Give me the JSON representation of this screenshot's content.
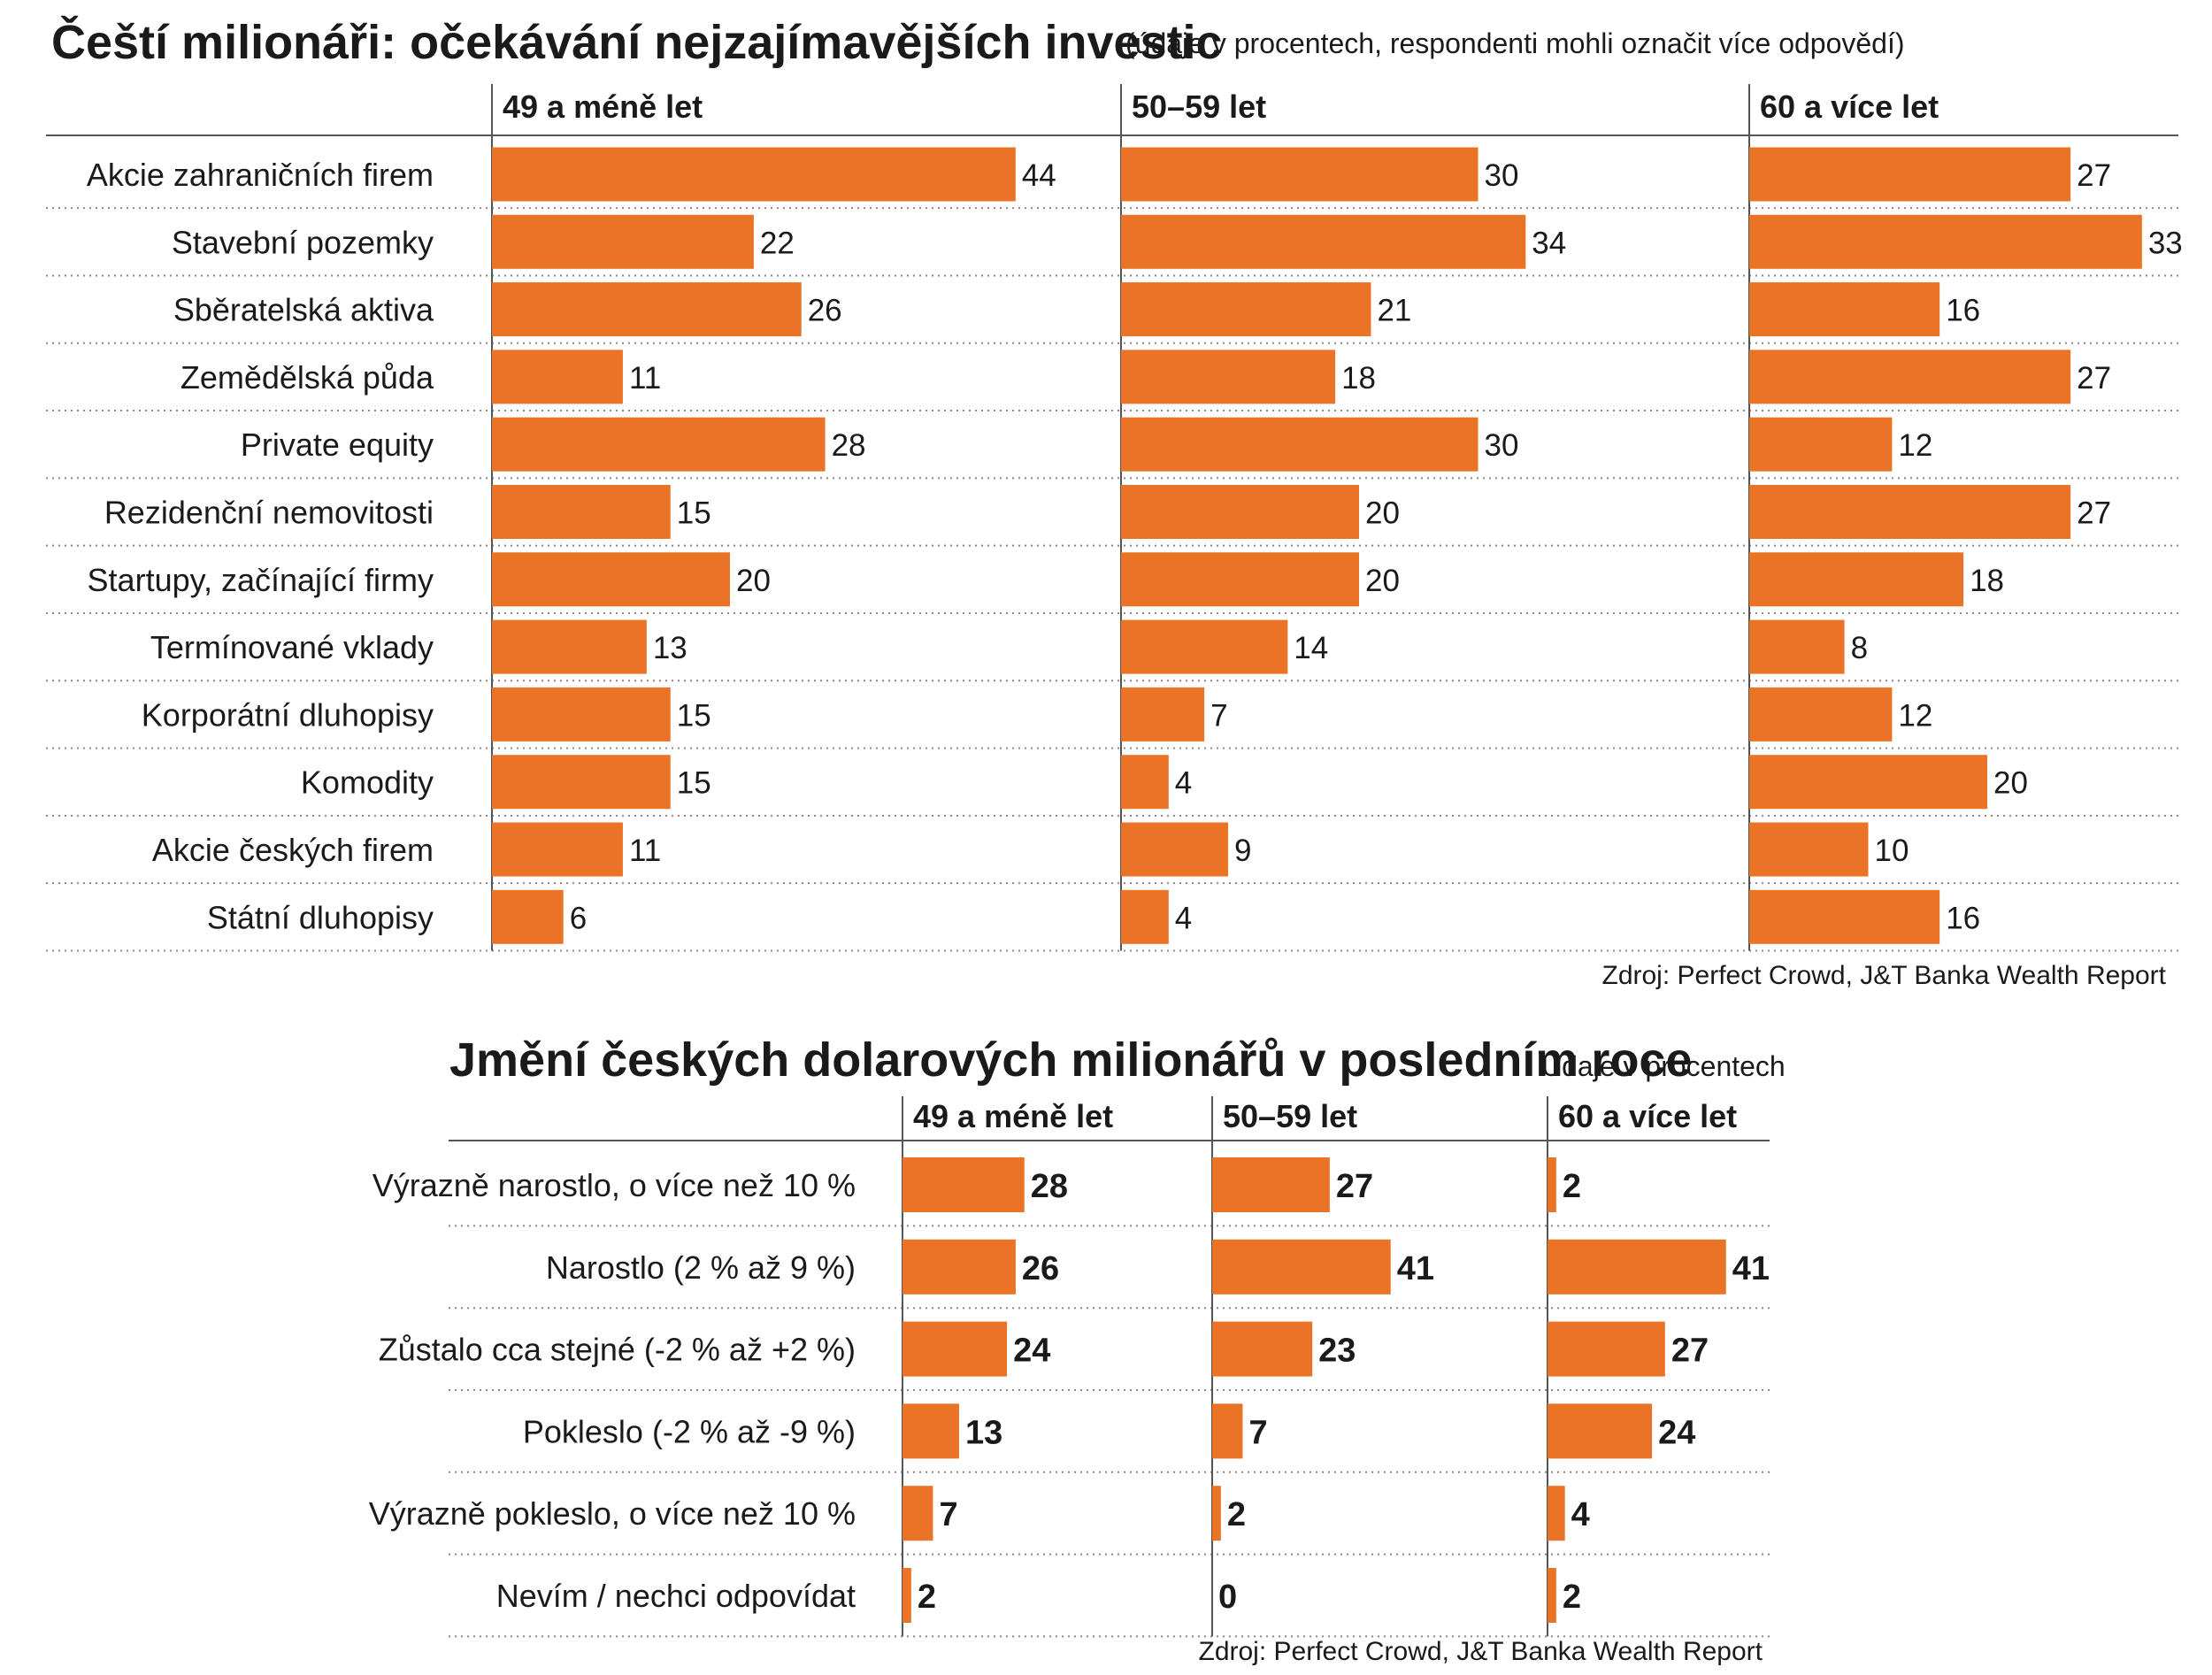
{
  "colors": {
    "bar": "#eb7325",
    "text": "#1a1a1a",
    "rule": "#555555",
    "dots": "#888888"
  },
  "chart_data": [
    {
      "type": "bar",
      "title": "Čeští milionáři: očekávání nejzajímavějších investic",
      "subtitle": "(údaje v procentech, respondenti mohli označit více odpovědí)",
      "source": "Zdroj: Perfect Crowd, J&T Banka Wealth Report",
      "categories": [
        "Akcie zahraničních firem",
        "Stavební pozemky",
        "Sběratelská aktiva",
        "Zemědělská půda",
        "Private equity",
        "Rezidenční nemovitosti",
        "Startupy, začínající firmy",
        "Termínované vklady",
        "Korporátní dluhopisy",
        "Komodity",
        "Akcie českých firem",
        "Státní dluhopisy"
      ],
      "series": [
        {
          "name": "49 a méně let",
          "values": [
            44,
            22,
            26,
            11,
            28,
            15,
            20,
            13,
            15,
            15,
            11,
            6
          ]
        },
        {
          "name": "50–59 let",
          "values": [
            30,
            34,
            21,
            18,
            30,
            20,
            20,
            14,
            7,
            4,
            9,
            4
          ]
        },
        {
          "name": "60 a více let",
          "values": [
            27,
            33,
            16,
            27,
            12,
            27,
            18,
            8,
            12,
            20,
            10,
            16
          ]
        }
      ]
    },
    {
      "type": "bar",
      "title": "Jmění českých dolarových milionářů v posledním roce",
      "subtitle": "Údaje v procentech",
      "source": "Zdroj: Perfect Crowd, J&T Banka Wealth Report",
      "categories": [
        "Výrazně narostlo, o více než 10 %",
        "Narostlo (2 % až  9 %)",
        "Zůstalo cca stejné (-2 % až +2 %)",
        "Pokleslo (-2 % až  -9 %)",
        "Výrazně pokleslo, o více než 10 %",
        "Nevím / nechci odpovídat"
      ],
      "series": [
        {
          "name": "49 a méně let",
          "values": [
            28,
            26,
            24,
            13,
            7,
            2
          ]
        },
        {
          "name": "50–59 let",
          "values": [
            27,
            41,
            23,
            7,
            2,
            0
          ]
        },
        {
          "name": "60 a více let",
          "values": [
            2,
            41,
            27,
            24,
            4,
            2
          ]
        }
      ]
    }
  ]
}
